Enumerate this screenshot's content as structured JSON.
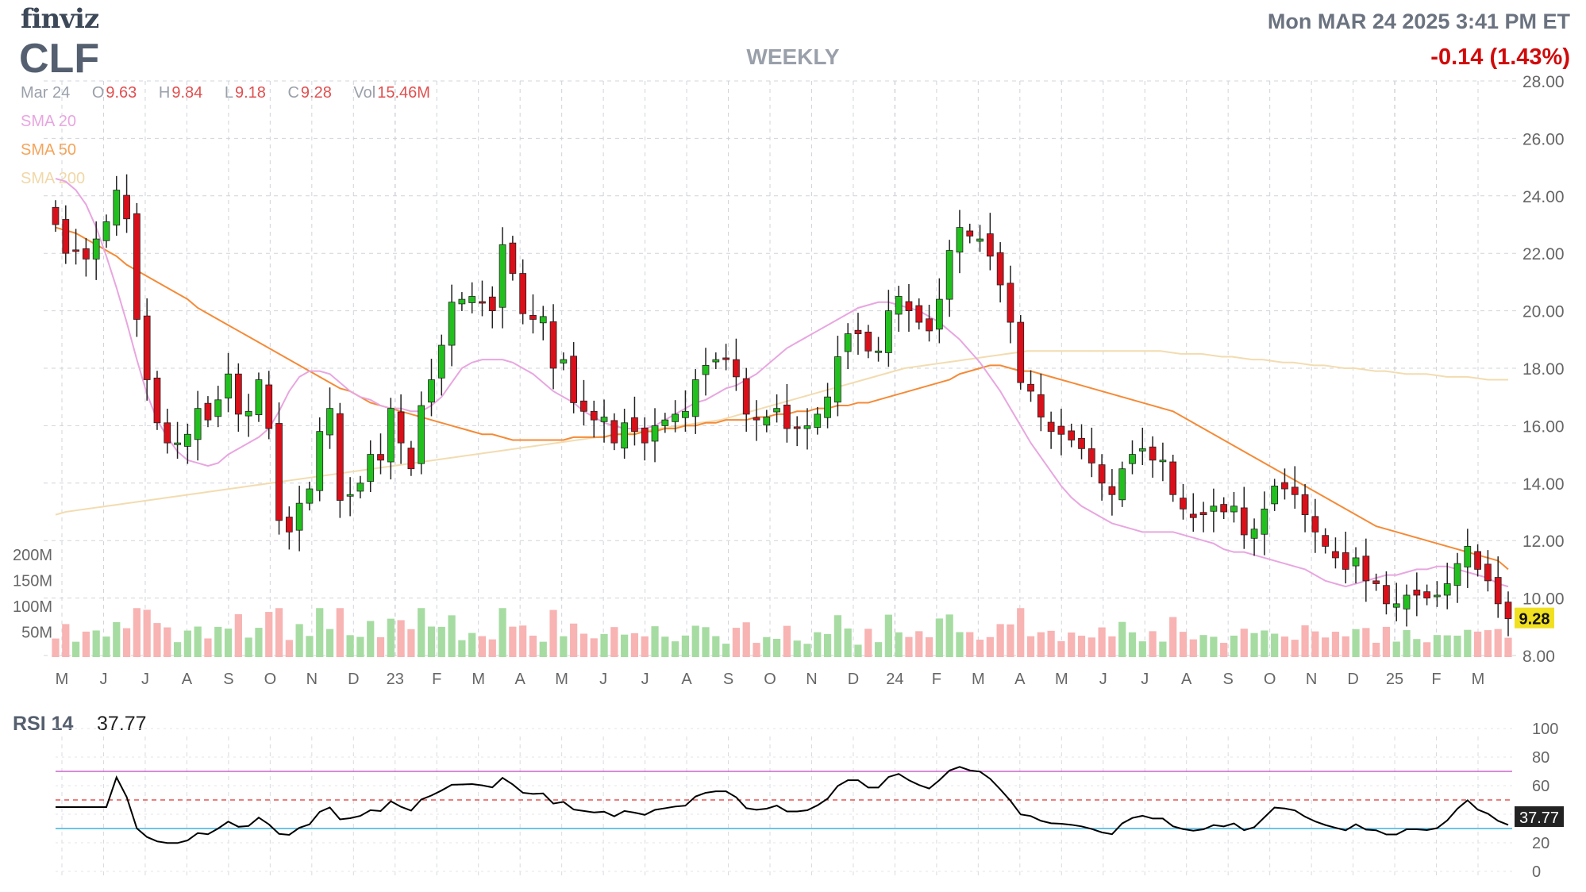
{
  "header": {
    "brand": "finviz",
    "ticker": "CLF",
    "period": "WEEKLY",
    "datetime": "Mon MAR 24 2025 3:41 PM ET",
    "change": "-0.14 (1.43%)"
  },
  "ohlc": {
    "date": "Mar 24",
    "open_label": "O",
    "open": "9.63",
    "high_label": "H",
    "high": "9.84",
    "low_label": "L",
    "low": "9.18",
    "close_label": "C",
    "close": "9.28",
    "vol_label": "Vol",
    "vol": "15.46M"
  },
  "sma_labels": {
    "sma20": "SMA 20",
    "sma50": "SMA 50",
    "sma200": "SMA 200"
  },
  "rsi": {
    "label": "RSI 14",
    "value": "37.77"
  },
  "colors": {
    "up": "#22c01e",
    "down": "#d9101a",
    "vol_up": "#a6dca2",
    "vol_down": "#f8b3b3",
    "sma20": "#e8a6e0",
    "sma50": "#f58a36",
    "sma200": "#f2dcb0",
    "rsi_line": "#000000",
    "rsi_70": "#cc66cc",
    "rsi_30": "#3ab0e0",
    "rsi_50": "#e03030",
    "price_tag": "#f0e020"
  },
  "chart_data": [
    {
      "type": "candlestick",
      "y_axis": {
        "min": 8,
        "max": 28,
        "ticks": [
          "28.00",
          "26.00",
          "24.00",
          "22.00",
          "20.00",
          "18.00",
          "16.00",
          "14.00",
          "12.00",
          "10.00",
          "8.00"
        ],
        "side": "right"
      },
      "x_labels": [
        "M",
        "J",
        "J",
        "A",
        "S",
        "O",
        "N",
        "D",
        "23",
        "F",
        "M",
        "A",
        "M",
        "J",
        "J",
        "A",
        "S",
        "O",
        "N",
        "D",
        "24",
        "F",
        "M",
        "A",
        "M",
        "J",
        "J",
        "A",
        "S",
        "O",
        "N",
        "D",
        "25",
        "F",
        "M"
      ],
      "last_price": "9.28",
      "closes": [
        23.0,
        22.0,
        22.1,
        21.8,
        22.5,
        23.1,
        24.2,
        23.2,
        19.7,
        17.6,
        16.1,
        15.4,
        15.4,
        15.7,
        16.6,
        16.2,
        16.9,
        17.8,
        16.4,
        16.5,
        17.6,
        15.9,
        12.7,
        12.3,
        13.3,
        13.8,
        15.8,
        16.6,
        13.4,
        13.6,
        14.0,
        15.0,
        14.8,
        16.6,
        15.4,
        14.5,
        16.7,
        17.6,
        18.8,
        20.3,
        20.4,
        20.5,
        20.3,
        20.0,
        22.3,
        21.3,
        19.9,
        19.7,
        19.8,
        18.0,
        18.3,
        16.8,
        16.5,
        16.2,
        16.3,
        15.4,
        16.1,
        15.8,
        15.4,
        16.0,
        16.2,
        16.4,
        16.5,
        17.6,
        18.1,
        18.3,
        18.3,
        17.7,
        16.4,
        16.2,
        16.3,
        16.6,
        15.9,
        15.9,
        16.0,
        16.4,
        17.0,
        18.4,
        19.2,
        19.2,
        18.6,
        18.6,
        20.0,
        20.5,
        20.0,
        19.6,
        19.3,
        20.4,
        22.1,
        22.9,
        22.6,
        22.5,
        21.9,
        20.9,
        19.6,
        17.5,
        17.2,
        16.3,
        15.8,
        15.7,
        15.5,
        15.2,
        14.7,
        14.0,
        13.6,
        14.5,
        15.0,
        15.2,
        14.8,
        14.8,
        13.6,
        13.1,
        12.8,
        12.9,
        13.2,
        13.0,
        13.2,
        12.2,
        12.4,
        13.1,
        13.9,
        13.8,
        13.6,
        12.9,
        12.3,
        11.8,
        11.4,
        11.0,
        11.4,
        10.6,
        10.5,
        9.8,
        9.8,
        10.1,
        10.1,
        10.0,
        10.1,
        10.5,
        11.2,
        11.8,
        11.0,
        10.6,
        9.8,
        9.28
      ],
      "sma20": [
        24.6,
        24.5,
        24.2,
        23.7,
        22.9,
        21.9,
        20.8,
        19.6,
        18.3,
        17.1,
        16.2,
        15.6,
        15.1,
        14.8,
        14.7,
        14.6,
        14.7,
        15.0,
        15.2,
        15.4,
        15.6,
        15.9,
        16.5,
        17.2,
        17.7,
        17.9,
        17.9,
        17.8,
        17.5,
        17.2,
        17.0,
        16.9,
        16.7,
        16.6,
        16.6,
        16.5,
        16.5,
        16.7,
        17.0,
        17.5,
        18.0,
        18.2,
        18.3,
        18.3,
        18.3,
        18.2,
        18.0,
        17.8,
        17.5,
        17.2,
        17.0,
        16.8,
        16.5,
        16.3,
        16.1,
        16.0,
        15.9,
        15.9,
        15.9,
        16.0,
        16.2,
        16.4,
        16.6,
        16.8,
        16.9,
        17.1,
        17.3,
        17.4,
        17.6,
        17.8,
        18.1,
        18.4,
        18.7,
        18.9,
        19.1,
        19.3,
        19.5,
        19.7,
        19.9,
        20.1,
        20.2,
        20.3,
        20.3,
        20.2,
        20.1,
        20.0,
        19.8,
        19.6,
        19.3,
        19.0,
        18.6,
        18.2,
        17.7,
        17.2,
        16.6,
        16.0,
        15.4,
        14.9,
        14.4,
        13.9,
        13.5,
        13.2,
        13.0,
        12.8,
        12.6,
        12.5,
        12.4,
        12.3,
        12.3,
        12.3,
        12.3,
        12.2,
        12.1,
        12.0,
        11.9,
        11.7,
        11.6,
        11.6,
        11.5,
        11.4,
        11.3,
        11.2,
        11.1,
        11.0,
        10.8,
        10.6,
        10.5,
        10.4,
        10.5,
        10.6,
        10.7,
        10.8,
        10.8,
        10.9,
        11.0,
        11.0,
        11.1,
        11.1,
        11.0,
        10.9,
        10.8,
        10.7,
        10.5,
        10.4
      ],
      "sma50": [
        22.9,
        22.8,
        22.7,
        22.5,
        22.3,
        22.1,
        21.9,
        21.6,
        21.4,
        21.2,
        21.0,
        20.8,
        20.6,
        20.4,
        20.1,
        19.9,
        19.7,
        19.5,
        19.3,
        19.1,
        18.9,
        18.7,
        18.5,
        18.3,
        18.1,
        17.9,
        17.7,
        17.5,
        17.3,
        17.2,
        17.0,
        16.8,
        16.7,
        16.6,
        16.5,
        16.4,
        16.3,
        16.2,
        16.1,
        16.0,
        15.9,
        15.8,
        15.7,
        15.7,
        15.6,
        15.5,
        15.5,
        15.5,
        15.5,
        15.5,
        15.5,
        15.6,
        15.6,
        15.6,
        15.6,
        15.7,
        15.7,
        15.7,
        15.8,
        15.8,
        15.9,
        15.9,
        16.0,
        16.0,
        16.1,
        16.1,
        16.2,
        16.2,
        16.2,
        16.3,
        16.3,
        16.4,
        16.4,
        16.5,
        16.5,
        16.6,
        16.6,
        16.7,
        16.7,
        16.8,
        16.8,
        16.9,
        17.0,
        17.1,
        17.2,
        17.3,
        17.4,
        17.5,
        17.6,
        17.8,
        17.9,
        18.0,
        18.1,
        18.1,
        18.0,
        17.9,
        17.9,
        17.8,
        17.7,
        17.6,
        17.5,
        17.4,
        17.3,
        17.2,
        17.1,
        17.0,
        16.9,
        16.8,
        16.7,
        16.6,
        16.5,
        16.3,
        16.1,
        15.9,
        15.7,
        15.5,
        15.3,
        15.1,
        14.9,
        14.7,
        14.5,
        14.3,
        14.1,
        13.9,
        13.7,
        13.5,
        13.3,
        13.1,
        12.9,
        12.7,
        12.5,
        12.4,
        12.3,
        12.2,
        12.1,
        12.0,
        11.9,
        11.8,
        11.7,
        11.6,
        11.5,
        11.4,
        11.3,
        11.0
      ],
      "sma200": [
        12.9,
        13.0,
        13.05,
        13.1,
        13.15,
        13.2,
        13.25,
        13.3,
        13.35,
        13.4,
        13.45,
        13.5,
        13.55,
        13.6,
        13.65,
        13.7,
        13.75,
        13.8,
        13.85,
        13.9,
        13.95,
        14.0,
        14.05,
        14.1,
        14.15,
        14.2,
        14.25,
        14.3,
        14.35,
        14.4,
        14.45,
        14.5,
        14.55,
        14.6,
        14.65,
        14.7,
        14.75,
        14.8,
        14.85,
        14.9,
        14.95,
        15.0,
        15.05,
        15.1,
        15.15,
        15.2,
        15.25,
        15.3,
        15.35,
        15.4,
        15.45,
        15.5,
        15.55,
        15.6,
        15.65,
        15.7,
        15.75,
        15.8,
        15.85,
        15.9,
        15.95,
        16.0,
        16.05,
        16.1,
        16.15,
        16.2,
        16.3,
        16.4,
        16.5,
        16.6,
        16.7,
        16.8,
        16.9,
        17.0,
        17.1,
        17.2,
        17.3,
        17.4,
        17.5,
        17.6,
        17.7,
        17.8,
        17.9,
        18.0,
        18.05,
        18.1,
        18.15,
        18.2,
        18.25,
        18.3,
        18.35,
        18.4,
        18.45,
        18.5,
        18.55,
        18.6,
        18.6,
        18.6,
        18.6,
        18.6,
        18.6,
        18.6,
        18.6,
        18.6,
        18.6,
        18.6,
        18.6,
        18.6,
        18.6,
        18.55,
        18.5,
        18.5,
        18.5,
        18.45,
        18.4,
        18.4,
        18.35,
        18.3,
        18.3,
        18.25,
        18.2,
        18.2,
        18.15,
        18.1,
        18.1,
        18.05,
        18.0,
        18.0,
        17.95,
        17.9,
        17.9,
        17.85,
        17.8,
        17.8,
        17.8,
        17.75,
        17.7,
        17.7,
        17.7,
        17.65,
        17.6,
        17.6,
        17.6
      ]
    },
    {
      "type": "bar",
      "title": "Volume",
      "y_ticks": [
        "200M",
        "150M",
        "100M",
        "50M"
      ],
      "y_max": 200,
      "unit": "M",
      "last_value": "15.46M"
    },
    {
      "type": "line",
      "title": "RSI 14",
      "ylim": [
        0,
        100
      ],
      "y_ticks": [
        "100",
        "80",
        "60",
        "40",
        "20",
        "0"
      ],
      "levels": [
        70,
        50,
        30
      ],
      "last_value": "37.77"
    }
  ]
}
